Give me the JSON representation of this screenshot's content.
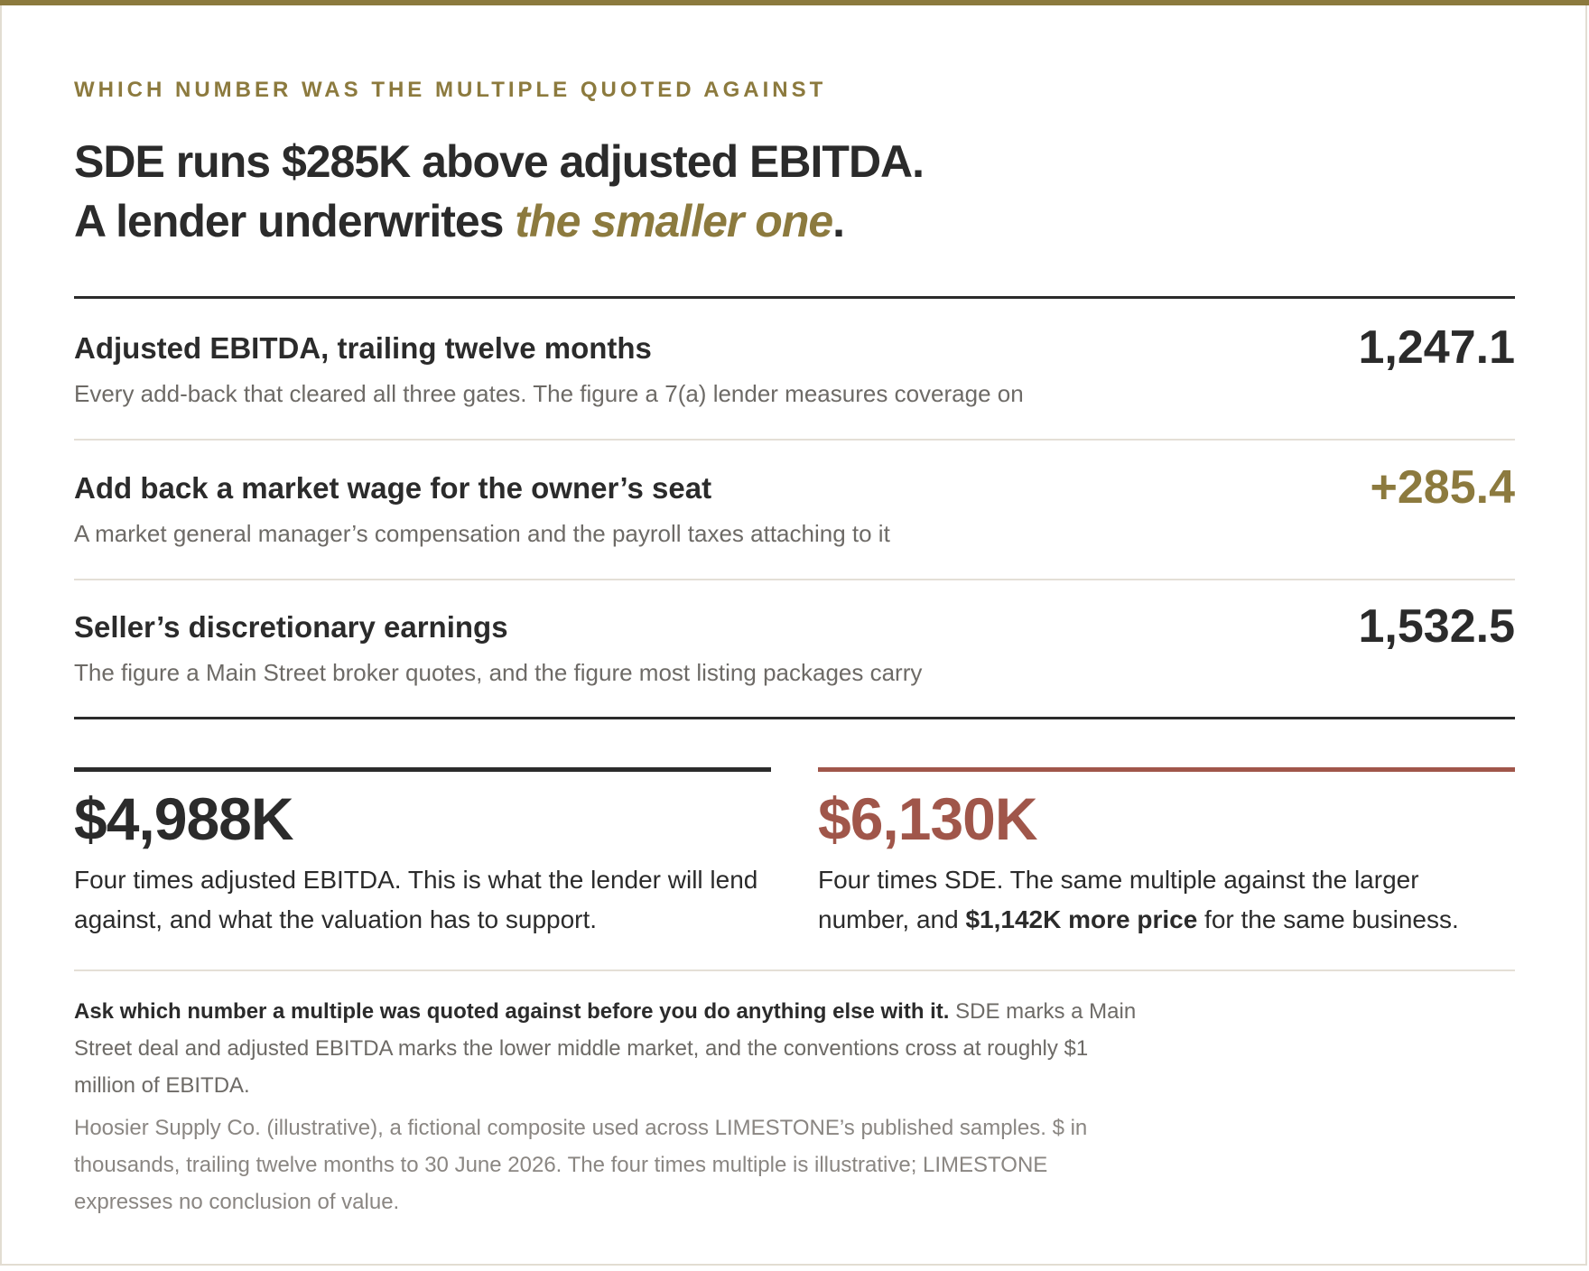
{
  "eyebrow": "WHICH NUMBER WAS THE MULTIPLE QUOTED AGAINST",
  "headline": {
    "line1": "SDE runs $285K above adjusted EBITDA.",
    "line2_prefix": "A lender underwrites ",
    "line2_accent": "the smaller one",
    "line2_suffix": "."
  },
  "rows": [
    {
      "label": "Adjusted EBITDA, trailing twelve months",
      "description": "Every add-back that cleared all three gates. The figure a 7(a) lender measures coverage on",
      "value": "1,247.1"
    },
    {
      "label": "Add back a market wage for the owner’s seat",
      "description": "A market general manager’s compensation and the payroll taxes attaching to it",
      "value": "+285.4"
    },
    {
      "label": "Seller’s discretionary earnings",
      "description": "The figure a Main Street broker quotes, and the figure most listing packages carry",
      "value": "1,532.5"
    }
  ],
  "cards": {
    "left": {
      "amount": "$4,988K",
      "text": "Four times adjusted EBITDA. This is what the lender will lend against, and what the valuation has to support."
    },
    "right": {
      "amount": "$6,130K",
      "text_before": "Four times SDE. The same multiple against the larger number, and ",
      "text_bold": "$1,142K more price",
      "text_after": " for the same business."
    }
  },
  "note": {
    "bold": "Ask which number a multiple was quoted against before you do anything else with it.",
    "rest": " SDE marks a Main Street deal and adjusted EBITDA marks the lower middle market, and the conventions cross at roughly $1 million of EBITDA."
  },
  "footnote": "Hoosier Supply Co. (illustrative), a fictional composite used across LIMESTONE’s published samples. $ in thousands, trailing twelve months to 30 June 2026. The four times multiple is illustrative; LIMESTONE expresses no conclusion of value.",
  "colors": {
    "accent_gold": "#8c7a3e",
    "accent_red": "#a0564a",
    "ink": "#2b2b2b",
    "muted": "#6d6a66"
  }
}
